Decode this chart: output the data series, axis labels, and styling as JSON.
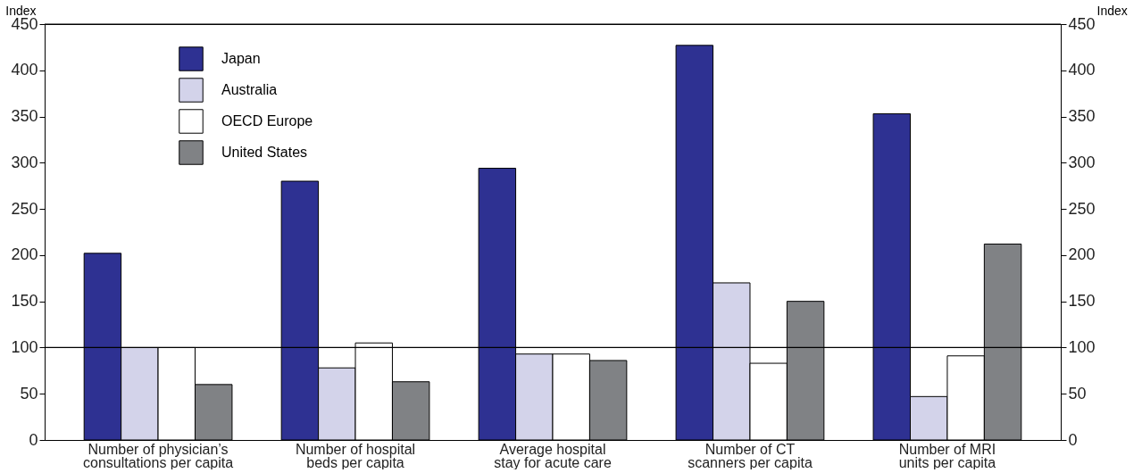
{
  "chart_data": {
    "type": "bar",
    "categories": [
      "Number of physician’s\nconsultations per capita",
      "Number of hospital\nbeds per capita",
      "Average hospital\nstay for acute care",
      "Number of CT\nscanners per capita",
      "Number of MRI\nunits per capita"
    ],
    "series": [
      {
        "name": "Japan",
        "color": "#2e3192",
        "values": [
          202,
          280,
          294,
          427,
          353
        ]
      },
      {
        "name": "Australia",
        "color": "#d3d3ea",
        "values": [
          100,
          78,
          93,
          170,
          47
        ]
      },
      {
        "name": "OECD Europe",
        "color": "#ffffff",
        "values": [
          100,
          105,
          93,
          83,
          91
        ]
      },
      {
        "name": "United States",
        "color": "#808285",
        "values": [
          60,
          63,
          86,
          150,
          212
        ]
      }
    ],
    "ylabel": "Index",
    "y2label": "Index",
    "ylim": [
      0,
      450
    ],
    "yticks": [
      0,
      50,
      100,
      150,
      200,
      250,
      300,
      350,
      400,
      450
    ],
    "y2lim": [
      0,
      450
    ],
    "y2ticks": [
      0,
      50,
      100,
      150,
      200,
      250,
      300,
      350,
      400,
      450
    ],
    "ref_lines": [
      {
        "axis": "y",
        "value": 100,
        "color": "#000000"
      }
    ],
    "grid": false,
    "legend": "top left"
  }
}
